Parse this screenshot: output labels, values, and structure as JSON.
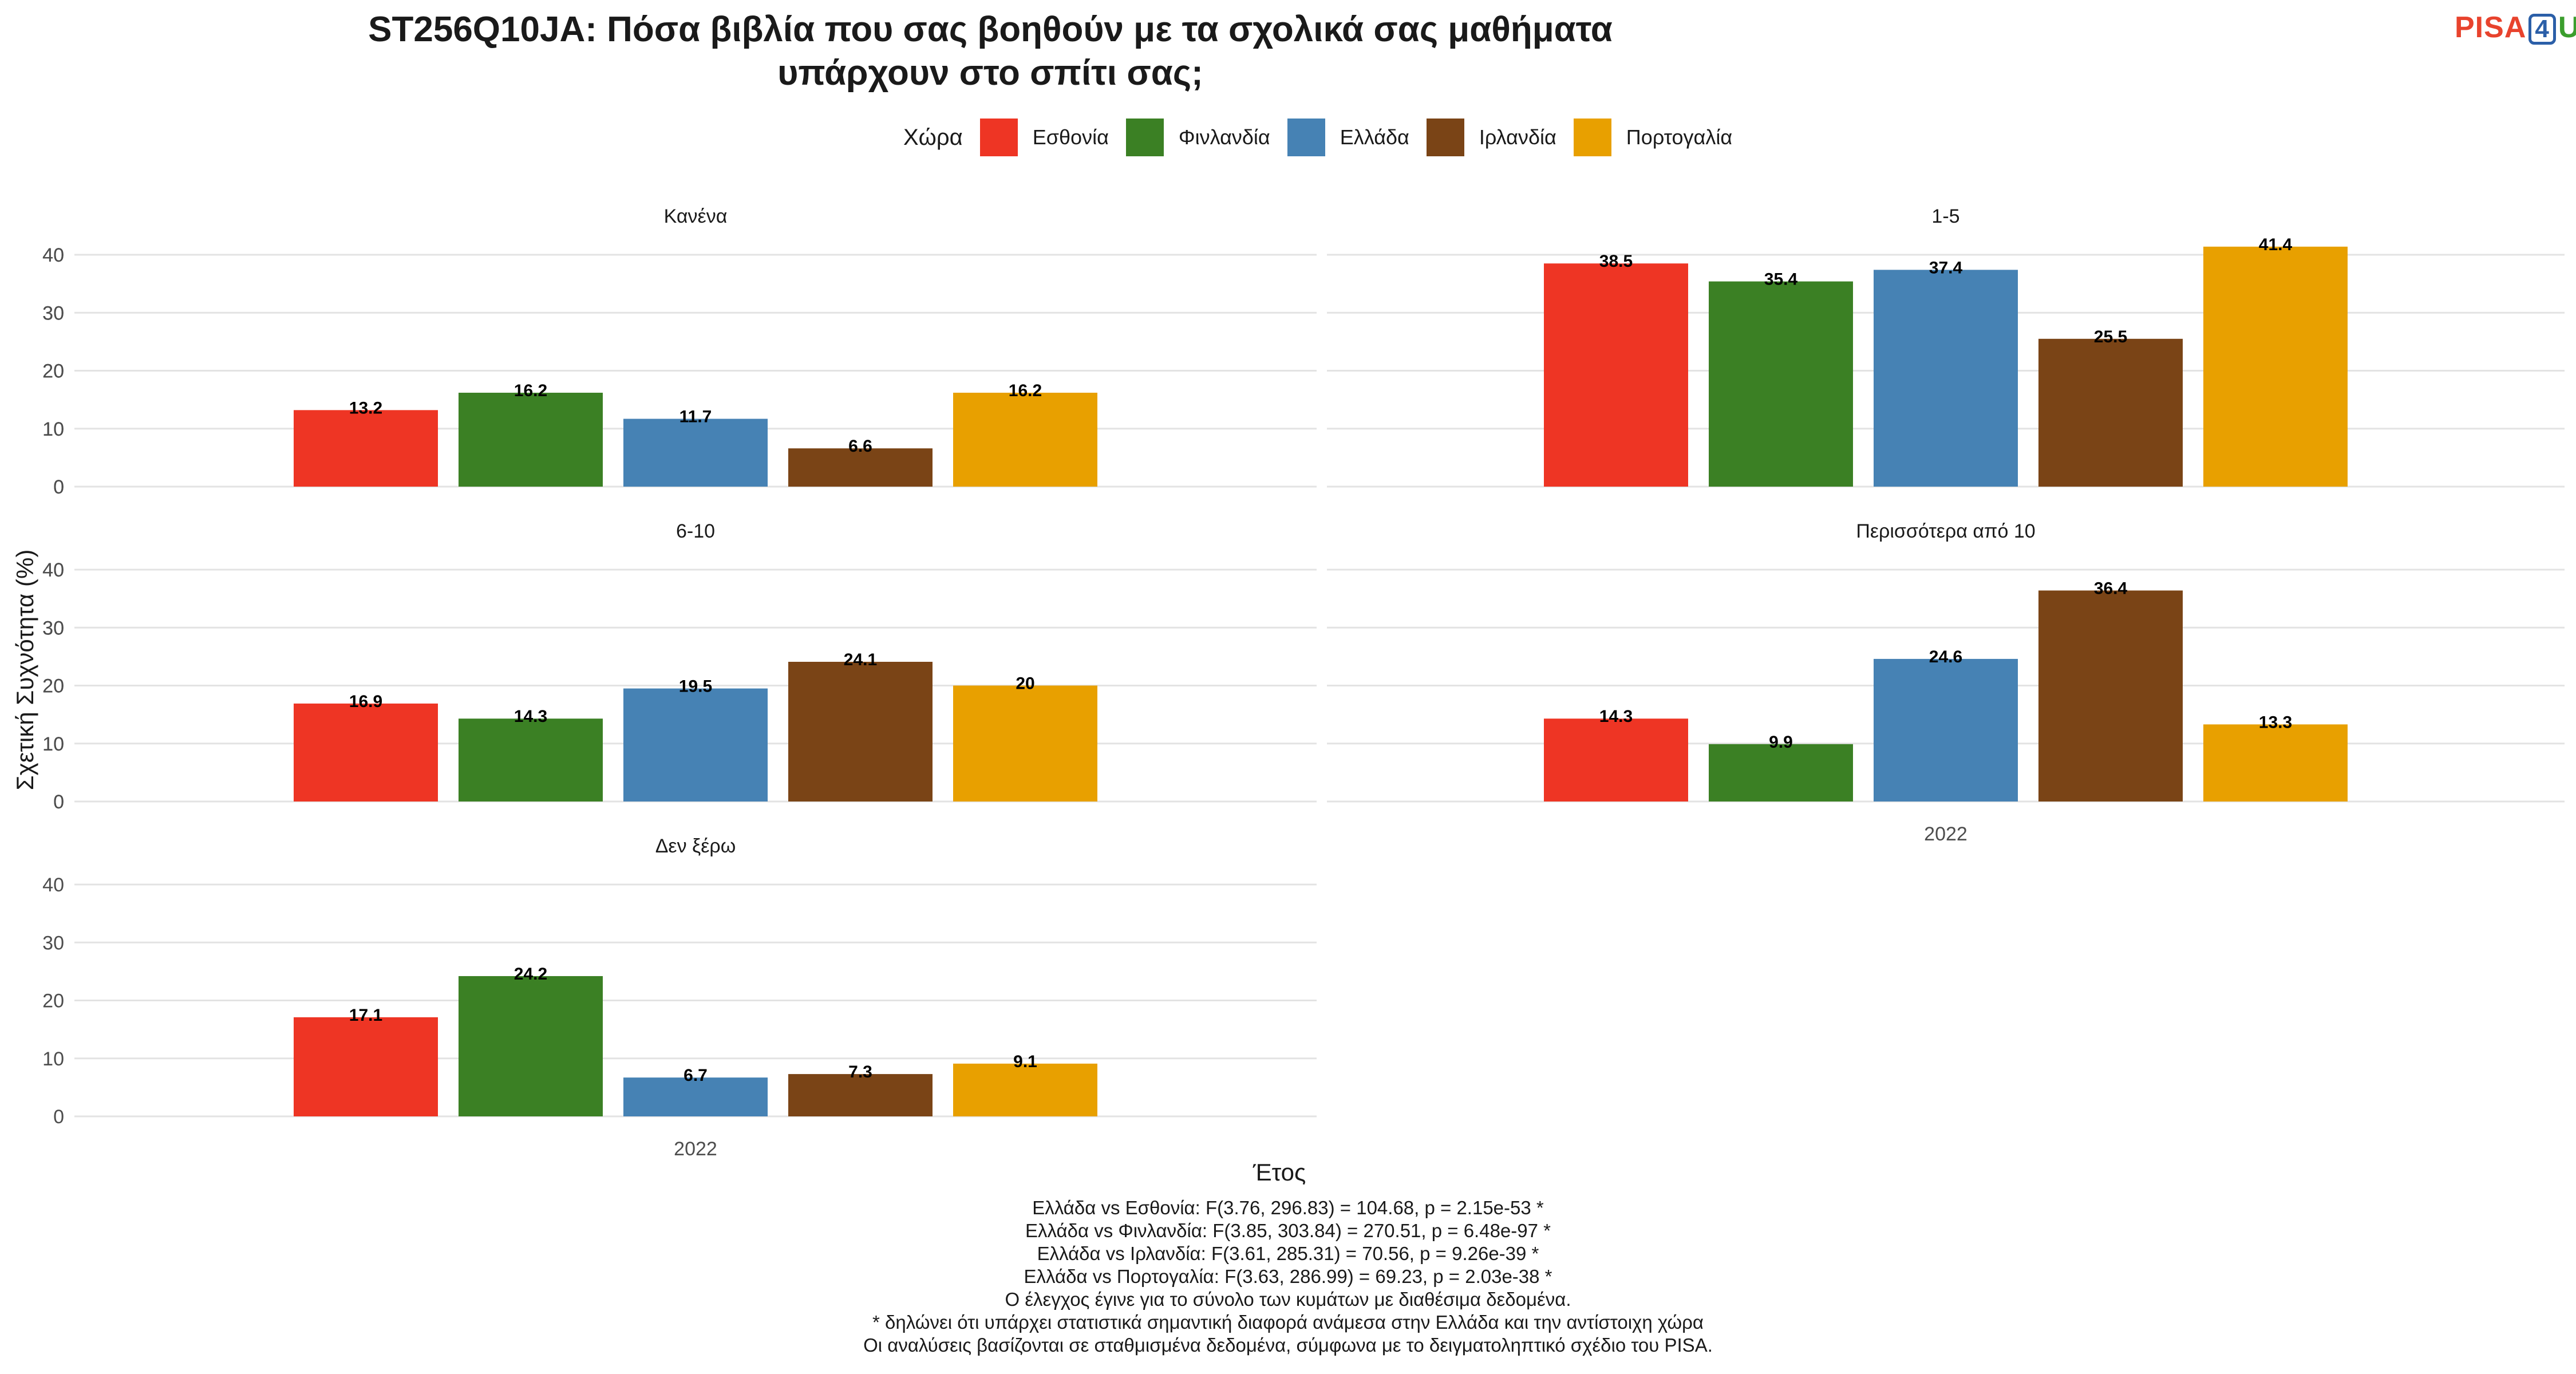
{
  "chart_data": {
    "type": "bar",
    "title": [
      "ST256Q10JA: Πόσα βιβλία που σας βοηθούν με τα σχολικά σας μαθήματα",
      "υπάρχουν στο σπίτι σας;"
    ],
    "xlabel": "Έτος",
    "ylabel": "Σχετική Συχνότητα (%)",
    "ylim": [
      0,
      40
    ],
    "yticks": [
      0,
      10,
      20,
      30,
      40
    ],
    "x_category": "2022",
    "legend": {
      "title": "Χώρα",
      "position": "top",
      "entries": [
        {
          "name": "Εσθονία",
          "color": "#ee3524"
        },
        {
          "name": "Φινλανδία",
          "color": "#3b8024"
        },
        {
          "name": "Ελλάδα",
          "color": "#4682b4"
        },
        {
          "name": "Ιρλανδία",
          "color": "#7a4416"
        },
        {
          "name": "Πορτογαλία",
          "color": "#e8a000"
        }
      ]
    },
    "grid": true,
    "panels": [
      {
        "label": "Κανένα",
        "values": [
          "13.2",
          "16.2",
          "11.7",
          "6.6",
          "16.2"
        ],
        "show_x_tick": false
      },
      {
        "label": "1-5",
        "values": [
          "38.5",
          "35.4",
          "37.4",
          "25.5",
          "41.4"
        ],
        "show_x_tick": false
      },
      {
        "label": "6-10",
        "values": [
          "16.9",
          "14.3",
          "19.5",
          "24.1",
          "20"
        ],
        "show_x_tick": false
      },
      {
        "label": "Περισσότερα από 10",
        "values": [
          "14.3",
          "9.9",
          "24.6",
          "36.4",
          "13.3"
        ],
        "show_x_tick": true
      },
      {
        "label": "Δεν ξέρω",
        "values": [
          "17.1",
          "24.2",
          "6.7",
          "7.3",
          "9.1"
        ],
        "show_x_tick": true
      }
    ]
  },
  "logo": {
    "part1": "PISA",
    "part2": "4",
    "part3": "U"
  },
  "notes": [
    "Ελλάδα vs Εσθονία: F(3.76, 296.83) = 104.68, p = 2.15e-53 *",
    "Ελλάδα vs Φινλανδία: F(3.85, 303.84) = 270.51, p = 6.48e-97 *",
    "Ελλάδα vs Ιρλανδία: F(3.61, 285.31) = 70.56, p = 9.26e-39 *",
    "Ελλάδα vs Πορτογαλία: F(3.63, 286.99) = 69.23, p = 2.03e-38 *",
    "Ο έλεγχος έγινε για το σύνολο των κυμάτων με διαθέσιμα δεδομένα.",
    "* δηλώνει ότι υπάρχει στατιστικά σημαντική διαφορά ανάμεσα στην Ελλάδα και την αντίστοιχη χώρα",
    "Οι αναλύσεις βασίζονται σε σταθμισμένα δεδομένα, σύμφωνα με το δειγματοληπτικό σχέδιο του PISA."
  ]
}
